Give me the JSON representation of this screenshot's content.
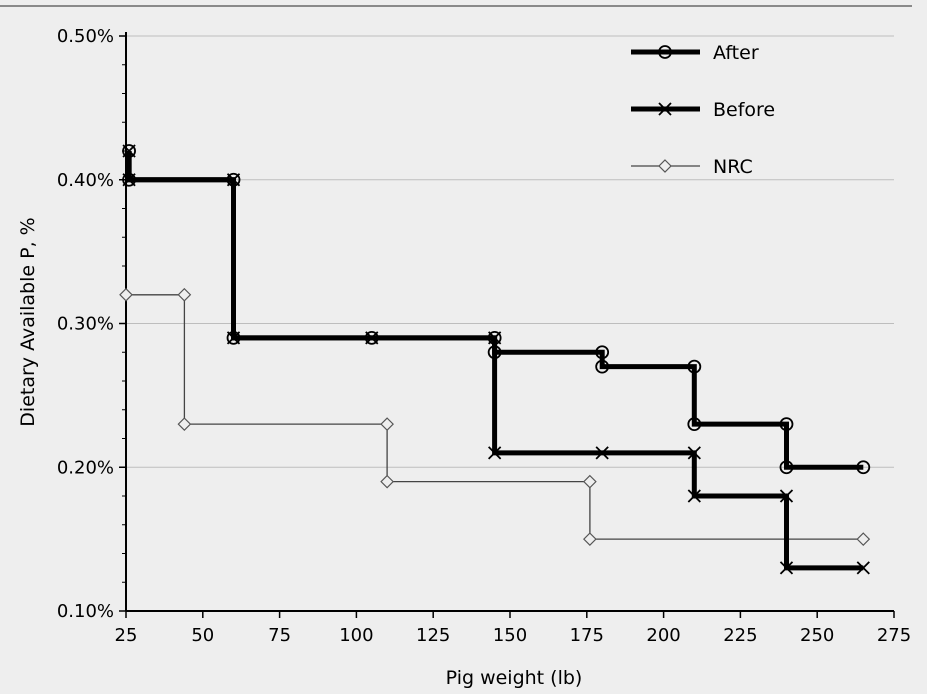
{
  "chart_data": {
    "type": "line",
    "title": "",
    "xlabel": "Pig weight (lb)",
    "ylabel": "Dietary Available P, %",
    "xlim": [
      25,
      275
    ],
    "ylim": [
      0.1,
      0.5
    ],
    "x_ticks": [
      25,
      50,
      75,
      100,
      125,
      150,
      175,
      200,
      225,
      250,
      275
    ],
    "y_ticks": [
      {
        "value": 0.1,
        "label": "0.10%"
      },
      {
        "value": 0.2,
        "label": "0.20%"
      },
      {
        "value": 0.3,
        "label": "0.30%"
      },
      {
        "value": 0.4,
        "label": "0.40%"
      },
      {
        "value": 0.5,
        "label": "0.50%"
      }
    ],
    "grid": "horizontal",
    "legend_position": "top-right",
    "series": [
      {
        "name": "After",
        "marker": "circle",
        "line": "thick",
        "points": [
          [
            26,
            0.42
          ],
          [
            26,
            0.4
          ],
          [
            60,
            0.4
          ],
          [
            60,
            0.29
          ],
          [
            105,
            0.29
          ],
          [
            145,
            0.29
          ],
          [
            145,
            0.28
          ],
          [
            180,
            0.28
          ],
          [
            180,
            0.27
          ],
          [
            210,
            0.27
          ],
          [
            210,
            0.23
          ],
          [
            240,
            0.23
          ],
          [
            240,
            0.2
          ],
          [
            265,
            0.2
          ]
        ]
      },
      {
        "name": "Before",
        "marker": "x",
        "line": "thick",
        "points": [
          [
            26,
            0.42
          ],
          [
            26,
            0.4
          ],
          [
            60,
            0.4
          ],
          [
            60,
            0.29
          ],
          [
            105,
            0.29
          ],
          [
            145,
            0.29
          ],
          [
            145,
            0.21
          ],
          [
            180,
            0.21
          ],
          [
            210,
            0.21
          ],
          [
            210,
            0.18
          ],
          [
            240,
            0.18
          ],
          [
            240,
            0.13
          ],
          [
            265,
            0.13
          ]
        ]
      },
      {
        "name": "NRC",
        "marker": "diamond",
        "line": "thin",
        "points": [
          [
            25,
            0.32
          ],
          [
            44,
            0.32
          ],
          [
            44,
            0.23
          ],
          [
            110,
            0.23
          ],
          [
            110,
            0.19
          ],
          [
            176,
            0.19
          ],
          [
            176,
            0.15
          ],
          [
            265,
            0.15
          ]
        ]
      }
    ]
  }
}
